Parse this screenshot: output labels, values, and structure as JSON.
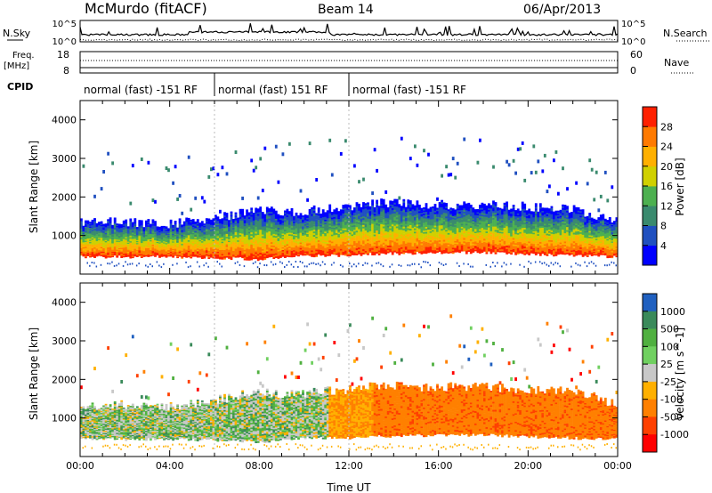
{
  "header": {
    "station": "McMurdo (fitACF)",
    "beam": "Beam 14",
    "date": "06/Apr/2013"
  },
  "noise_panel": {
    "left_label": "N.Sky",
    "right_label": "N.Search",
    "left_ticks": [
      "10^5",
      "10^0"
    ],
    "right_ticks": [
      "10^5",
      "10^0"
    ]
  },
  "freq_panel": {
    "left_label_1": "Freq.",
    "left_label_2": "[MHz]",
    "right_label": "Nave",
    "left_ticks": [
      "18",
      "8"
    ],
    "right_ticks": [
      "60",
      "0"
    ]
  },
  "cpid": {
    "label": "CPID",
    "segments": [
      {
        "start": 0,
        "end": 6,
        "text": "normal (fast) -151 RF"
      },
      {
        "start": 6,
        "end": 12,
        "text": "normal (fast) 151 RF"
      },
      {
        "start": 12,
        "end": 24,
        "text": "normal (fast) -151 RF"
      }
    ]
  },
  "chart_data": [
    {
      "type": "heatmap",
      "title": "",
      "ylabel": "Slant Range [km]",
      "xlabel": "",
      "xlim": [
        0,
        24
      ],
      "ylim": [
        0,
        4500
      ],
      "yticks": [
        "1000",
        "2000",
        "3000",
        "4000"
      ],
      "colorbar": {
        "label": "Power [dB]",
        "ticks": [
          "4",
          "8",
          "12",
          "16",
          "20",
          "24",
          "28"
        ],
        "colors": [
          "#0000ff",
          "#2050c0",
          "#3a8a6e",
          "#4db050",
          "#d0d000",
          "#ffb000",
          "#ff7a00",
          "#ff2000"
        ]
      },
      "band": {
        "x": [
          0,
          2,
          4,
          6,
          8,
          9,
          10,
          12,
          13,
          16,
          18,
          20,
          22,
          24
        ],
        "bottom": [
          450,
          450,
          450,
          430,
          380,
          430,
          480,
          480,
          520,
          560,
          560,
          520,
          480,
          450
        ],
        "top": [
          1350,
          1350,
          1300,
          1450,
          1700,
          1600,
          1650,
          1750,
          1850,
          1800,
          1800,
          1750,
          1700,
          1350
        ]
      }
    },
    {
      "type": "heatmap",
      "title": "",
      "ylabel": "Slant Range [km]",
      "xlabel": "Time UT",
      "xlim": [
        0,
        24
      ],
      "ylim": [
        0,
        4500
      ],
      "xticks": [
        "00:00",
        "04:00",
        "08:00",
        "12:00",
        "16:00",
        "20:00",
        "00:00"
      ],
      "yticks": [
        "1000",
        "2000",
        "3000",
        "4000"
      ],
      "colorbar": {
        "label": "Velocity [m s^-1]",
        "ticks": [
          "1000",
          "500",
          "100",
          "25",
          "-25",
          "-100",
          "-500",
          "-1000"
        ],
        "colors": [
          "#2060c0",
          "#3a8a5a",
          "#50b040",
          "#70d060",
          "#c8c8c8",
          "#ffb000",
          "#ff8000",
          "#ff4000",
          "#ff0000"
        ]
      },
      "band": {
        "x": [
          0,
          2,
          4,
          6,
          8,
          9,
          10,
          12,
          13,
          16,
          18,
          20,
          22,
          24
        ],
        "bottom": [
          450,
          450,
          450,
          430,
          380,
          430,
          480,
          480,
          520,
          560,
          560,
          520,
          480,
          450
        ],
        "top": [
          1350,
          1350,
          1300,
          1450,
          1700,
          1600,
          1650,
          1750,
          1850,
          1800,
          1800,
          1750,
          1700,
          1350
        ]
      }
    }
  ]
}
